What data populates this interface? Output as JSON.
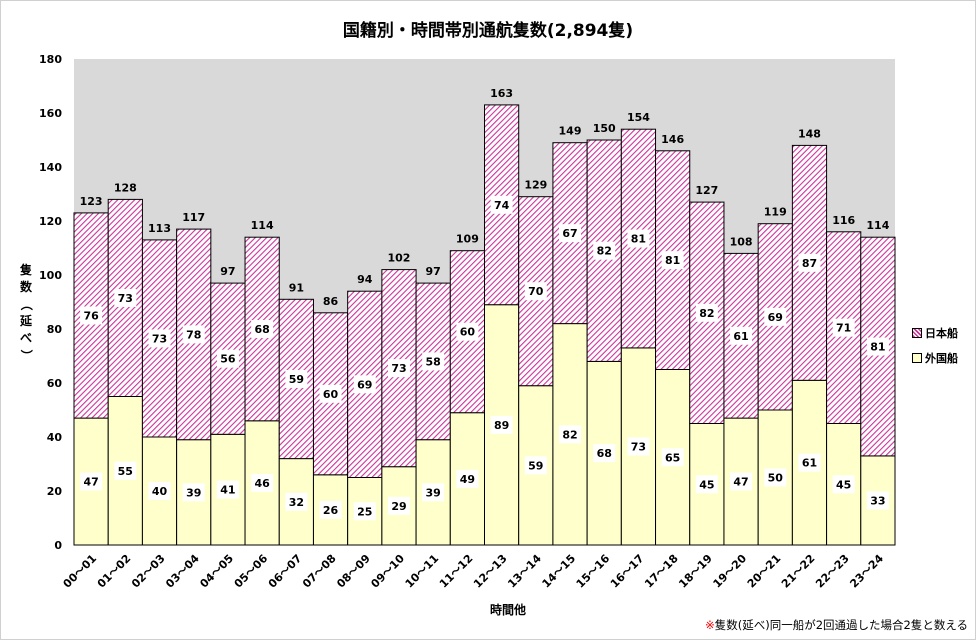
{
  "chart_data": {
    "type": "bar",
    "stacked": true,
    "title": "国籍別・時間帯別通航隻数(2,894隻)",
    "xlabel": "時間他",
    "ylabel": "隻数（延べ）",
    "ylim": [
      0,
      180
    ],
    "yticks": [
      0,
      20,
      40,
      60,
      80,
      100,
      120,
      140,
      160,
      180
    ],
    "categories": [
      "00～01",
      "01～02",
      "02～03",
      "03～04",
      "04～05",
      "05～06",
      "06～07",
      "07～08",
      "08～09",
      "09～10",
      "10～11",
      "11～12",
      "12～13",
      "13～14",
      "14～15",
      "15～16",
      "16～17",
      "17～18",
      "18～19",
      "19～20",
      "20～21",
      "21～22",
      "22～23",
      "23～24"
    ],
    "series": [
      {
        "name": "外国船",
        "color": "#ffffcc",
        "values": [
          47,
          55,
          40,
          39,
          41,
          46,
          32,
          26,
          25,
          29,
          39,
          49,
          89,
          59,
          82,
          68,
          73,
          65,
          45,
          47,
          50,
          61,
          45,
          33
        ]
      },
      {
        "name": "日本船",
        "color": "#cc3399",
        "pattern": "diagonal-hatch",
        "values": [
          76,
          73,
          73,
          78,
          56,
          68,
          59,
          60,
          69,
          73,
          58,
          60,
          74,
          70,
          67,
          82,
          81,
          81,
          82,
          61,
          69,
          87,
          71,
          81
        ]
      }
    ],
    "totals": [
      123,
      128,
      113,
      117,
      97,
      114,
      91,
      86,
      94,
      102,
      97,
      109,
      163,
      129,
      149,
      150,
      154,
      146,
      127,
      108,
      119,
      148,
      116,
      114
    ],
    "legend_position": "right",
    "plot_background": "#d9d9d9",
    "footnote_mark": "※",
    "footnote": "隻数(延べ)同一船が2回通過した場合2隻と数える"
  }
}
